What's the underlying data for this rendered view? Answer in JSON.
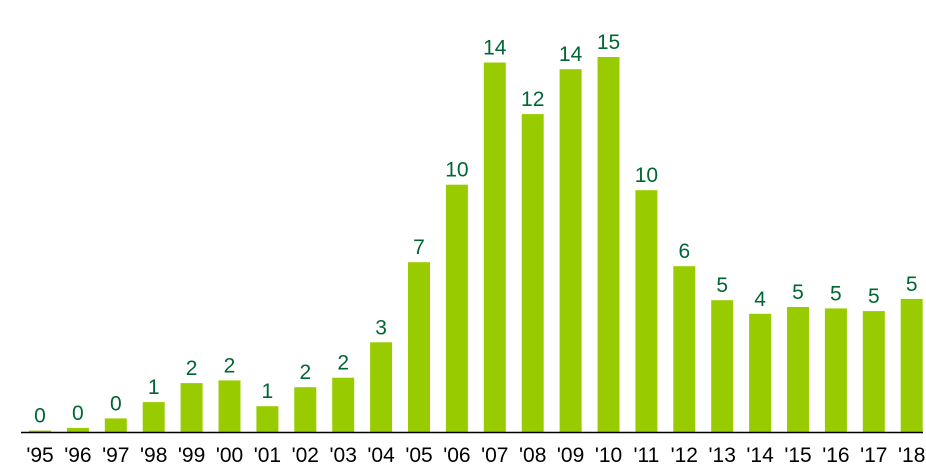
{
  "colors": {
    "bar": "#99cc00",
    "value_label": "#006633",
    "axis": "#000000"
  },
  "chart_data": {
    "type": "bar",
    "title": "",
    "xlabel": "",
    "ylabel": "",
    "categories": [
      "'95",
      "'96",
      "'97",
      "'98",
      "'99",
      "'00",
      "'01",
      "'02",
      "'03",
      "'04",
      "'05",
      "'06",
      "'07",
      "'08",
      "'09",
      "'10",
      "'11",
      "'12",
      "'13",
      "'14",
      "'15",
      "'16",
      "'17",
      "'18"
    ],
    "values": [
      0.1,
      0.3,
      1.0,
      2.2,
      3.6,
      3.8,
      1.9,
      3.3,
      4.0,
      6.6,
      12.5,
      18.2,
      27.2,
      23.4,
      26.7,
      27.6,
      17.8,
      12.2,
      9.7,
      8.7,
      9.2,
      9.1,
      8.9,
      9.8
    ],
    "labels": [
      "0",
      "0",
      "0",
      "1",
      "2",
      "2",
      "1",
      "2",
      "2",
      "3",
      "7",
      "10",
      "14",
      "12",
      "14",
      "15",
      "10",
      "6",
      "5",
      "4",
      "5",
      "5",
      "5",
      "5"
    ],
    "ylim": [
      0,
      29
    ],
    "grid": false,
    "legend": "none"
  }
}
